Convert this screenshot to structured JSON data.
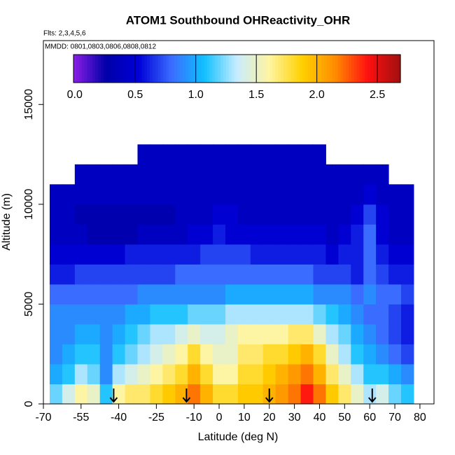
{
  "chart_data": {
    "type": "heatmap",
    "title": "ATOM1 Southbound OHReactivity_OHR",
    "subtitle": "Flts: 2,3,4,5,6",
    "annotation": "MMDD: 0801,0803,0806,0808,0812",
    "x_label": "Latitude (deg N)",
    "y_label": "Altitude (m)",
    "xlim": [
      -70,
      85.6
    ],
    "xticks": [
      -70,
      -55,
      -40,
      -25,
      -10,
      0,
      10,
      20,
      30,
      40,
      50,
      60,
      70,
      80
    ],
    "ylim": [
      0,
      18200
    ],
    "yticks": [
      0,
      5000,
      10000,
      15000
    ],
    "zlim": [
      -0.01,
      2.69
    ],
    "zticks": [
      {
        "value": 0,
        "label": "0.0"
      },
      0.5,
      {
        "value": 1,
        "label": "1.0"
      },
      1.5,
      {
        "value": 2,
        "label": "2.0"
      },
      2.5
    ],
    "colorscale": [
      "#8b1ee6",
      "#0000a8",
      "#0000d8",
      "#3a6cff",
      "#10c0ff",
      "#c8ecff",
      "#fff4a0",
      "#ffd000",
      "#ff8c00",
      "#ff1010",
      "#a01010"
    ],
    "markers": [
      -42,
      -13,
      20,
      61
    ],
    "x": [
      -65,
      -60,
      -55,
      -50,
      -45,
      -40,
      -35,
      -30,
      -25,
      -20,
      -15,
      -10,
      -5,
      0,
      5,
      10,
      15,
      20,
      25,
      30,
      35,
      40,
      45,
      50,
      55,
      60,
      65,
      70,
      75
    ],
    "y": [
      500,
      1500,
      2500,
      3500,
      4500,
      5500,
      6500,
      7500,
      8500,
      9500,
      10500,
      11500,
      12500
    ],
    "z": [
      [
        1.2,
        1.4,
        1.6,
        1.5,
        1.1,
        1.6,
        1.7,
        1.7,
        1.8,
        1.9,
        2.0,
        2.2,
        2.0,
        1.8,
        1.8,
        1.9,
        1.9,
        2.0,
        2.1,
        2.2,
        2.4,
        2.2,
        1.9,
        1.7,
        1.5,
        1.3,
        1.4,
        1.2,
        1.1
      ],
      [
        1.0,
        1.1,
        1.3,
        1.2,
        0.9,
        1.3,
        1.4,
        1.5,
        1.6,
        1.7,
        1.8,
        2.0,
        1.8,
        1.6,
        1.6,
        1.8,
        1.8,
        1.9,
        2.0,
        2.1,
        2.2,
        2.0,
        1.7,
        1.5,
        1.3,
        1.1,
        1.1,
        1.0,
        0.9
      ],
      [
        0.9,
        1.0,
        1.1,
        1.1,
        0.9,
        1.1,
        1.2,
        1.3,
        1.4,
        1.5,
        1.6,
        1.8,
        1.6,
        1.5,
        1.5,
        1.7,
        1.7,
        1.8,
        1.8,
        1.9,
        2.0,
        1.8,
        1.5,
        1.3,
        1.1,
        1.0,
        0.9,
        0.8,
        0.7
      ],
      [
        0.9,
        0.9,
        1.0,
        1.0,
        0.9,
        1.0,
        1.1,
        1.2,
        1.3,
        1.3,
        1.4,
        1.5,
        1.4,
        1.4,
        1.5,
        1.6,
        1.6,
        1.6,
        1.6,
        1.7,
        1.7,
        1.5,
        1.3,
        1.2,
        1.0,
        0.9,
        0.8,
        0.7,
        0.6
      ],
      [
        0.9,
        0.9,
        0.9,
        0.9,
        0.9,
        0.9,
        1.0,
        1.0,
        1.1,
        1.1,
        1.1,
        1.2,
        1.2,
        1.2,
        1.3,
        1.3,
        1.3,
        1.3,
        1.3,
        1.3,
        1.3,
        1.2,
        1.1,
        1.0,
        0.9,
        0.8,
        0.8,
        0.7,
        0.6
      ],
      [
        0.8,
        0.8,
        0.8,
        0.8,
        0.8,
        0.8,
        0.8,
        0.9,
        0.9,
        0.9,
        0.9,
        0.9,
        0.9,
        0.9,
        1.0,
        1.0,
        1.0,
        1.0,
        1.0,
        1.0,
        1.0,
        0.9,
        0.9,
        0.9,
        0.8,
        0.9,
        0.8,
        0.8,
        0.7
      ],
      [
        0.6,
        0.6,
        0.7,
        0.7,
        0.7,
        0.7,
        0.7,
        0.7,
        0.7,
        0.7,
        0.8,
        0.8,
        0.8,
        0.8,
        0.8,
        0.8,
        0.8,
        0.8,
        0.8,
        0.8,
        0.8,
        0.7,
        0.7,
        0.7,
        0.6,
        0.8,
        0.7,
        0.6,
        0.6
      ],
      [
        0.5,
        0.5,
        0.5,
        0.5,
        0.5,
        0.5,
        0.6,
        0.6,
        0.6,
        0.6,
        0.6,
        0.6,
        0.7,
        0.7,
        0.7,
        0.7,
        0.6,
        0.6,
        0.6,
        0.6,
        0.6,
        0.6,
        0.5,
        0.6,
        0.6,
        0.8,
        0.6,
        0.5,
        0.5
      ],
      [
        0.4,
        0.4,
        0.4,
        0.3,
        0.3,
        0.3,
        0.3,
        0.4,
        0.4,
        0.4,
        0.4,
        0.5,
        0.5,
        0.6,
        0.5,
        0.5,
        0.5,
        0.5,
        0.5,
        0.5,
        0.5,
        0.5,
        0.4,
        0.5,
        0.6,
        0.8,
        0.5,
        0.4,
        0.4
      ],
      [
        0.4,
        0.4,
        0.3,
        0.3,
        0.3,
        0.3,
        0.3,
        0.3,
        0.3,
        0.3,
        0.4,
        0.4,
        0.4,
        0.5,
        0.5,
        0.4,
        0.4,
        0.4,
        0.4,
        0.4,
        0.4,
        0.4,
        0.4,
        0.4,
        0.5,
        0.7,
        0.5,
        0.4,
        0.4
      ],
      [
        0.4,
        0.4,
        0.4,
        0.4,
        0.4,
        0.4,
        0.4,
        0.4,
        0.4,
        0.4,
        0.4,
        0.4,
        0.4,
        0.4,
        0.4,
        0.4,
        0.4,
        0.4,
        0.4,
        0.4,
        0.4,
        0.4,
        0.4,
        0.4,
        0.4,
        0.5,
        0.4,
        0.4,
        0.4
      ],
      [
        null,
        null,
        0.4,
        0.4,
        0.4,
        0.4,
        0.4,
        0.4,
        0.4,
        0.4,
        0.4,
        0.4,
        0.4,
        0.4,
        0.4,
        0.4,
        0.4,
        0.4,
        0.4,
        0.4,
        0.4,
        0.4,
        0.4,
        0.4,
        0.4,
        0.4,
        0.4,
        null,
        null
      ],
      [
        null,
        null,
        null,
        null,
        null,
        null,
        null,
        0.4,
        0.4,
        0.4,
        0.4,
        0.4,
        0.4,
        0.4,
        0.4,
        0.4,
        0.4,
        0.4,
        0.4,
        0.4,
        0.4,
        0.4,
        null,
        null,
        null,
        null,
        null,
        null,
        null
      ]
    ]
  }
}
